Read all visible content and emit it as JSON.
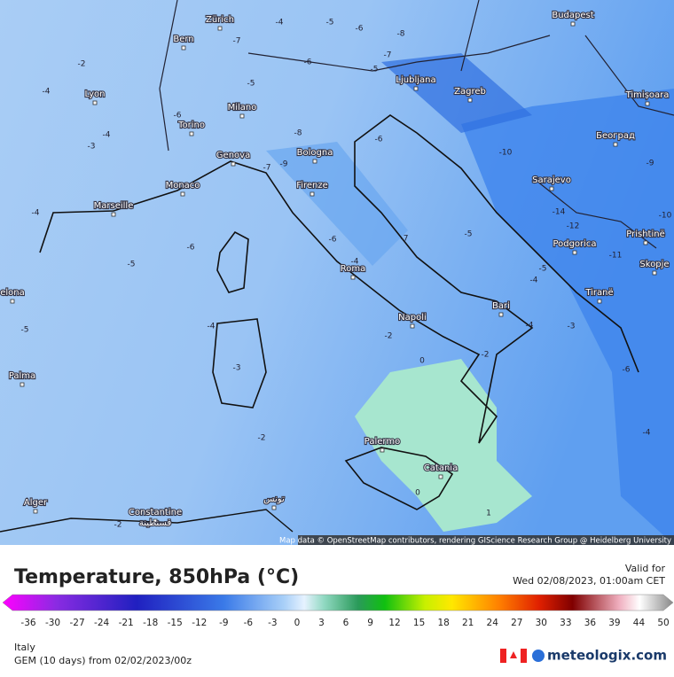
{
  "map": {
    "cities": [
      "Zürich",
      "Bern",
      "Lyon",
      "Milano",
      "Torino",
      "Genova",
      "Bologna",
      "Monaco",
      "Marseille",
      "Firenze",
      "Ljubljana",
      "Zagreb",
      "Budapest",
      "Timișoara",
      "Београд",
      "Sarajevo",
      "Podgorica",
      "Prishtinë",
      "Skopje",
      "Tiranë",
      "Roma",
      "Bari",
      "Napoli",
      "Palma",
      "Palermo",
      "Catania",
      "Alger",
      "Constantine",
      "قسنطينة",
      "تونس",
      "elona"
    ],
    "contour_labels": [
      "-2",
      "-4",
      "-3",
      "-4",
      "-4",
      "-5",
      "-6",
      "-5",
      "-3",
      "-2",
      "-2",
      "0",
      "-2",
      "0",
      "1",
      "-4",
      "-3",
      "-6",
      "-4",
      "-14",
      "-12",
      "-10",
      "-9",
      "-10",
      "-11",
      "-7",
      "-6",
      "-9",
      "-7",
      "-8",
      "-6",
      "-4",
      "-5",
      "-6",
      "-8",
      "-7",
      "-5",
      "-5",
      "-7",
      "-6",
      "-5",
      "-5",
      "-4",
      "-6",
      "-4",
      "-4",
      "-2"
    ],
    "attribution": "Map data © OpenStreetMap contributors, rendering GIScience Research Group @ Heidelberg University"
  },
  "footer": {
    "title": "Temperature, 850hPa (°C)",
    "valid_label": "Valid for",
    "valid_time": "Wed 02/08/2023, 01:00am CET",
    "region": "Italy",
    "model": "GEM (10 days) from 02/02/2023/00z",
    "brand": "meteologix.com",
    "colorbar_ticks": [
      "-36",
      "-30",
      "-27",
      "-24",
      "-21",
      "-18",
      "-15",
      "-12",
      "-9",
      "-6",
      "-3",
      "0",
      "3",
      "6",
      "9",
      "12",
      "15",
      "18",
      "21",
      "24",
      "27",
      "30",
      "33",
      "36",
      "39",
      "44",
      "50"
    ]
  }
}
